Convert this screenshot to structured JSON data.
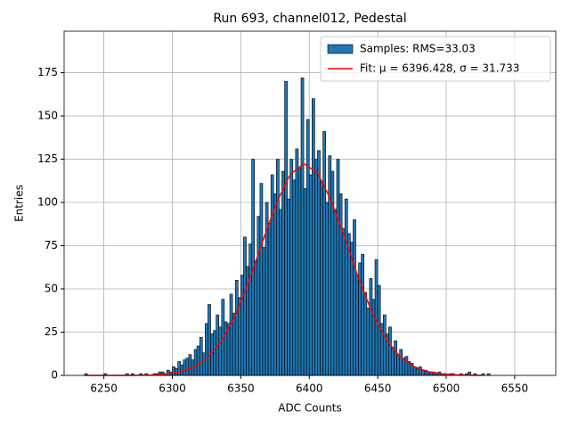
{
  "chart_data": {
    "type": "histogram",
    "title": "Run 693, channel012, Pedestal",
    "xlabel": "ADC Counts",
    "ylabel": "Entries",
    "name": "Samples: RMS=33.03",
    "color": "#1f77b4",
    "edgecolor": "#000000",
    "bins": [
      6234,
      6236,
      6238,
      6240,
      6242,
      6244,
      6246,
      6248,
      6250,
      6252,
      6254,
      6256,
      6258,
      6260,
      6262,
      6264,
      6266,
      6268,
      6270,
      6272,
      6274,
      6276,
      6278,
      6280,
      6282,
      6284,
      6286,
      6288,
      6290,
      6292,
      6294,
      6296,
      6298,
      6300,
      6302,
      6304,
      6306,
      6308,
      6310,
      6312,
      6314,
      6316,
      6318,
      6320,
      6322,
      6324,
      6326,
      6328,
      6330,
      6332,
      6334,
      6336,
      6338,
      6340,
      6342,
      6344,
      6346,
      6348,
      6350,
      6352,
      6354,
      6356,
      6358,
      6360,
      6362,
      6364,
      6366,
      6368,
      6370,
      6372,
      6374,
      6376,
      6378,
      6380,
      6382,
      6384,
      6386,
      6388,
      6390,
      6392,
      6394,
      6396,
      6398,
      6400,
      6402,
      6404,
      6406,
      6408,
      6410,
      6412,
      6414,
      6416,
      6418,
      6420,
      6422,
      6424,
      6426,
      6428,
      6430,
      6432,
      6434,
      6436,
      6438,
      6440,
      6442,
      6444,
      6446,
      6448,
      6450,
      6452,
      6454,
      6456,
      6458,
      6460,
      6462,
      6464,
      6466,
      6468,
      6470,
      6472,
      6474,
      6476,
      6478,
      6480,
      6482,
      6484,
      6486,
      6488,
      6490,
      6492,
      6494,
      6496,
      6498,
      6500,
      6502,
      6504,
      6506,
      6508,
      6510,
      6512,
      6514,
      6516,
      6518,
      6520,
      6522,
      6524,
      6526,
      6528,
      6530,
      6532,
      6534
    ],
    "counts": [
      0,
      1,
      0,
      0,
      0,
      0,
      0,
      0,
      1,
      0,
      0,
      0,
      0,
      0,
      0,
      0,
      1,
      0,
      1,
      0,
      0,
      1,
      0,
      1,
      0,
      0,
      1,
      1,
      2,
      2,
      1,
      3,
      2,
      5,
      4,
      8,
      6,
      9,
      10,
      12,
      9,
      15,
      17,
      22,
      13,
      30,
      41,
      24,
      26,
      35,
      28,
      44,
      31,
      30,
      47,
      36,
      55,
      45,
      58,
      80,
      63,
      76,
      125,
      66,
      92,
      111,
      74,
      100,
      88,
      116,
      105,
      125,
      96,
      118,
      170,
      102,
      125,
      113,
      131,
      120,
      172,
      108,
      148,
      116,
      160,
      125,
      130,
      112,
      141,
      100,
      127,
      118,
      96,
      125,
      105,
      85,
      102,
      82,
      77,
      90,
      58,
      65,
      70,
      48,
      39,
      56,
      44,
      67,
      52,
      30,
      35,
      24,
      28,
      16,
      20,
      12,
      15,
      10,
      11,
      8,
      7,
      5,
      4,
      5,
      3,
      3,
      2,
      2,
      2,
      1,
      2,
      1,
      1,
      0,
      1,
      1,
      0,
      0,
      1,
      0,
      1,
      2,
      0,
      1,
      0,
      0,
      1,
      0,
      1,
      0
    ],
    "fit": {
      "type": "line",
      "name": "Fit: μ = 6396.428, σ = 31.733",
      "color": "#ff0000",
      "x": [
        6236,
        6246,
        6256,
        6266,
        6276,
        6286,
        6296,
        6306,
        6316,
        6326,
        6336,
        6346,
        6356,
        6366,
        6376,
        6386,
        6396,
        6406,
        6416,
        6426,
        6436,
        6446,
        6456,
        6466,
        6476,
        6486,
        6496,
        6506,
        6516,
        6526
      ],
      "values": [
        0,
        0,
        0.01,
        0.03,
        0.09,
        0.29,
        0.82,
        2.11,
        4.93,
        10.45,
        20.0,
        34.7,
        54.5,
        77.5,
        99.6,
        116.1,
        122.5,
        117.0,
        101.2,
        79.4,
        56.2,
        36.0,
        21.0,
        11.0,
        5.26,
        2.27,
        0.89,
        0.31,
        0.1,
        0.03
      ]
    },
    "xlim": [
      6221,
      6580
    ],
    "ylim": [
      0,
      199
    ],
    "xticks": [
      6250,
      6300,
      6350,
      6400,
      6450,
      6500,
      6550
    ],
    "yticks": [
      0,
      25,
      50,
      75,
      100,
      125,
      150,
      175
    ],
    "grid": true,
    "legend": "upper right"
  }
}
